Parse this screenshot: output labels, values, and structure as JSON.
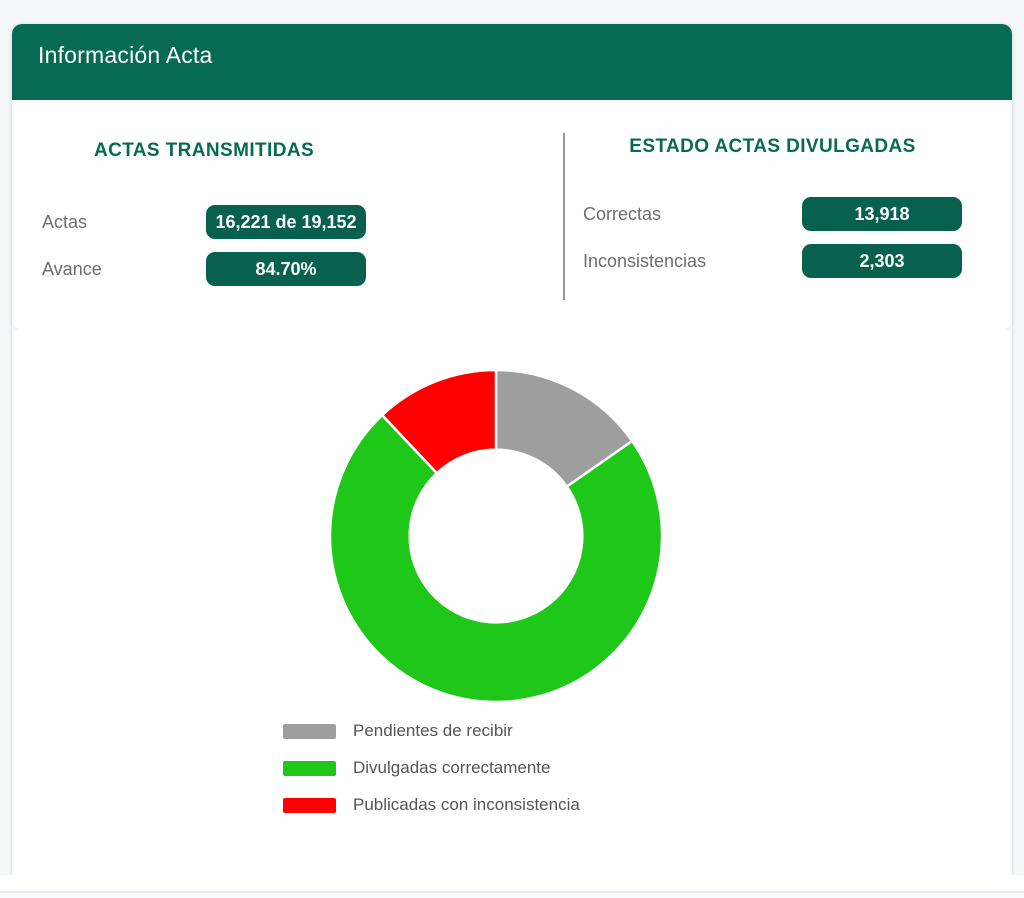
{
  "header": {
    "title": "Información Acta"
  },
  "transmitted": {
    "heading": "ACTAS TRANSMITIDAS",
    "rows": [
      {
        "label": "Actas",
        "value": "16,221 de 19,152"
      },
      {
        "label": "Avance",
        "value": "84.70%"
      }
    ]
  },
  "divulged": {
    "heading": "ESTADO ACTAS DIVULGADAS",
    "rows": [
      {
        "label": "Correctas",
        "value": "13,918"
      },
      {
        "label": "Inconsistencias",
        "value": "2,303"
      }
    ]
  },
  "chart_data": {
    "type": "pie",
    "subtype": "donut",
    "title": "",
    "total": 19152,
    "inner_radius_ratio": 0.52,
    "start_angle_deg": 0,
    "legend_position": "bottom-left",
    "series": [
      {
        "label": "Pendientes de recibir",
        "value": 2931,
        "color": "#9E9E9E"
      },
      {
        "label": "Divulgadas correctamente",
        "value": 13918,
        "color": "#1FC719"
      },
      {
        "label": "Publicadas con inconsistencia",
        "value": 2303,
        "color": "#FF0000"
      }
    ]
  },
  "colors": {
    "teal": "#076A53",
    "pill": "#07614E",
    "heading": "#086A53",
    "label": "#6E6E6E",
    "legend_text": "#545454",
    "divider": "#979797",
    "page_bg": "#F6F7F9"
  }
}
